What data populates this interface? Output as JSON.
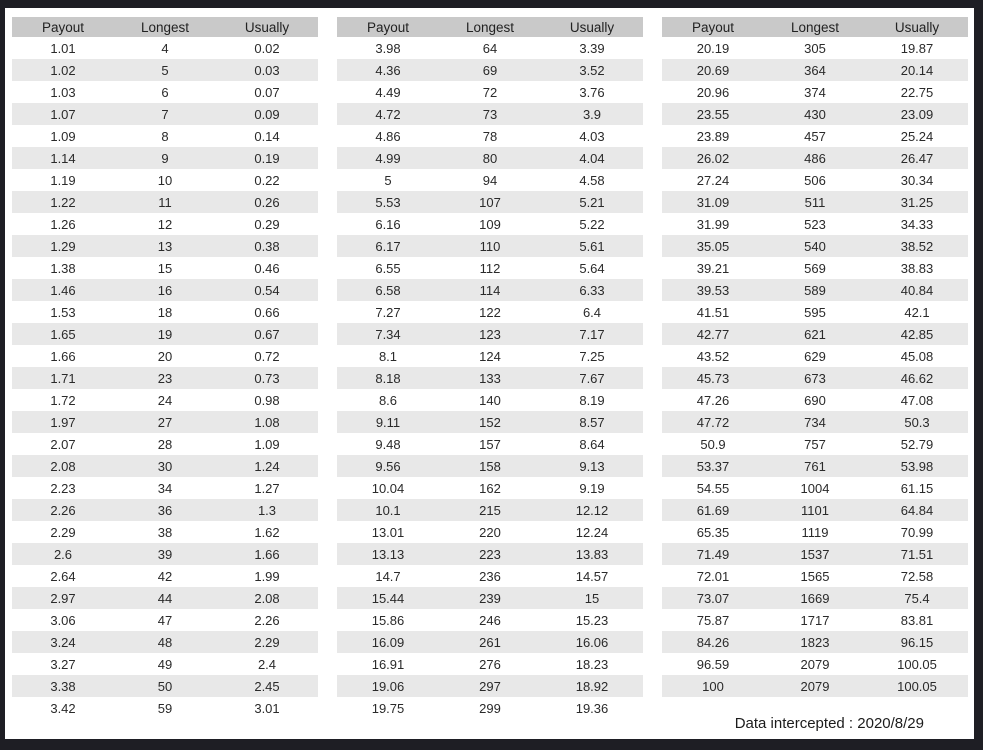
{
  "chart_data": {
    "type": "table",
    "columns": [
      "Payout",
      "Longest",
      "Usually"
    ],
    "tables": [
      {
        "rows": [
          [
            "1.01",
            "4",
            "0.02"
          ],
          [
            "1.02",
            "5",
            "0.03"
          ],
          [
            "1.03",
            "6",
            "0.07"
          ],
          [
            "1.07",
            "7",
            "0.09"
          ],
          [
            "1.09",
            "8",
            "0.14"
          ],
          [
            "1.14",
            "9",
            "0.19"
          ],
          [
            "1.19",
            "10",
            "0.22"
          ],
          [
            "1.22",
            "11",
            "0.26"
          ],
          [
            "1.26",
            "12",
            "0.29"
          ],
          [
            "1.29",
            "13",
            "0.38"
          ],
          [
            "1.38",
            "15",
            "0.46"
          ],
          [
            "1.46",
            "16",
            "0.54"
          ],
          [
            "1.53",
            "18",
            "0.66"
          ],
          [
            "1.65",
            "19",
            "0.67"
          ],
          [
            "1.66",
            "20",
            "0.72"
          ],
          [
            "1.71",
            "23",
            "0.73"
          ],
          [
            "1.72",
            "24",
            "0.98"
          ],
          [
            "1.97",
            "27",
            "1.08"
          ],
          [
            "2.07",
            "28",
            "1.09"
          ],
          [
            "2.08",
            "30",
            "1.24"
          ],
          [
            "2.23",
            "34",
            "1.27"
          ],
          [
            "2.26",
            "36",
            "1.3"
          ],
          [
            "2.29",
            "38",
            "1.62"
          ],
          [
            "2.6",
            "39",
            "1.66"
          ],
          [
            "2.64",
            "42",
            "1.99"
          ],
          [
            "2.97",
            "44",
            "2.08"
          ],
          [
            "3.06",
            "47",
            "2.26"
          ],
          [
            "3.24",
            "48",
            "2.29"
          ],
          [
            "3.27",
            "49",
            "2.4"
          ],
          [
            "3.38",
            "50",
            "2.45"
          ],
          [
            "3.42",
            "59",
            "3.01"
          ]
        ]
      },
      {
        "rows": [
          [
            "3.98",
            "64",
            "3.39"
          ],
          [
            "4.36",
            "69",
            "3.52"
          ],
          [
            "4.49",
            "72",
            "3.76"
          ],
          [
            "4.72",
            "73",
            "3.9"
          ],
          [
            "4.86",
            "78",
            "4.03"
          ],
          [
            "4.99",
            "80",
            "4.04"
          ],
          [
            "5",
            "94",
            "4.58"
          ],
          [
            "5.53",
            "107",
            "5.21"
          ],
          [
            "6.16",
            "109",
            "5.22"
          ],
          [
            "6.17",
            "110",
            "5.61"
          ],
          [
            "6.55",
            "112",
            "5.64"
          ],
          [
            "6.58",
            "114",
            "6.33"
          ],
          [
            "7.27",
            "122",
            "6.4"
          ],
          [
            "7.34",
            "123",
            "7.17"
          ],
          [
            "8.1",
            "124",
            "7.25"
          ],
          [
            "8.18",
            "133",
            "7.67"
          ],
          [
            "8.6",
            "140",
            "8.19"
          ],
          [
            "9.11",
            "152",
            "8.57"
          ],
          [
            "9.48",
            "157",
            "8.64"
          ],
          [
            "9.56",
            "158",
            "9.13"
          ],
          [
            "10.04",
            "162",
            "9.19"
          ],
          [
            "10.1",
            "215",
            "12.12"
          ],
          [
            "13.01",
            "220",
            "12.24"
          ],
          [
            "13.13",
            "223",
            "13.83"
          ],
          [
            "14.7",
            "236",
            "14.57"
          ],
          [
            "15.44",
            "239",
            "15"
          ],
          [
            "15.86",
            "246",
            "15.23"
          ],
          [
            "16.09",
            "261",
            "16.06"
          ],
          [
            "16.91",
            "276",
            "18.23"
          ],
          [
            "19.06",
            "297",
            "18.92"
          ],
          [
            "19.75",
            "299",
            "19.36"
          ]
        ]
      },
      {
        "rows": [
          [
            "20.19",
            "305",
            "19.87"
          ],
          [
            "20.69",
            "364",
            "20.14"
          ],
          [
            "20.96",
            "374",
            "22.75"
          ],
          [
            "23.55",
            "430",
            "23.09"
          ],
          [
            "23.89",
            "457",
            "25.24"
          ],
          [
            "26.02",
            "486",
            "26.47"
          ],
          [
            "27.24",
            "506",
            "30.34"
          ],
          [
            "31.09",
            "511",
            "31.25"
          ],
          [
            "31.99",
            "523",
            "34.33"
          ],
          [
            "35.05",
            "540",
            "38.52"
          ],
          [
            "39.21",
            "569",
            "38.83"
          ],
          [
            "39.53",
            "589",
            "40.84"
          ],
          [
            "41.51",
            "595",
            "42.1"
          ],
          [
            "42.77",
            "621",
            "42.85"
          ],
          [
            "43.52",
            "629",
            "45.08"
          ],
          [
            "45.73",
            "673",
            "46.62"
          ],
          [
            "47.26",
            "690",
            "47.08"
          ],
          [
            "47.72",
            "734",
            "50.3"
          ],
          [
            "50.9",
            "757",
            "52.79"
          ],
          [
            "53.37",
            "761",
            "53.98"
          ],
          [
            "54.55",
            "1004",
            "61.15"
          ],
          [
            "61.69",
            "1101",
            "64.84"
          ],
          [
            "65.35",
            "1119",
            "70.99"
          ],
          [
            "71.49",
            "1537",
            "71.51"
          ],
          [
            "72.01",
            "1565",
            "72.58"
          ],
          [
            "73.07",
            "1669",
            "75.4"
          ],
          [
            "75.87",
            "1717",
            "83.81"
          ],
          [
            "84.26",
            "1823",
            "96.15"
          ],
          [
            "96.59",
            "2079",
            "100.05"
          ],
          [
            "100",
            "2079",
            "100.05"
          ]
        ]
      }
    ],
    "footer_note": "Data intercepted : 2020/8/29"
  },
  "colors": {
    "frame": "#1e1e24",
    "header_bg": "#c9c9c9",
    "stripe_bg": "#e8e8e8",
    "text": "#2a2a2a"
  }
}
